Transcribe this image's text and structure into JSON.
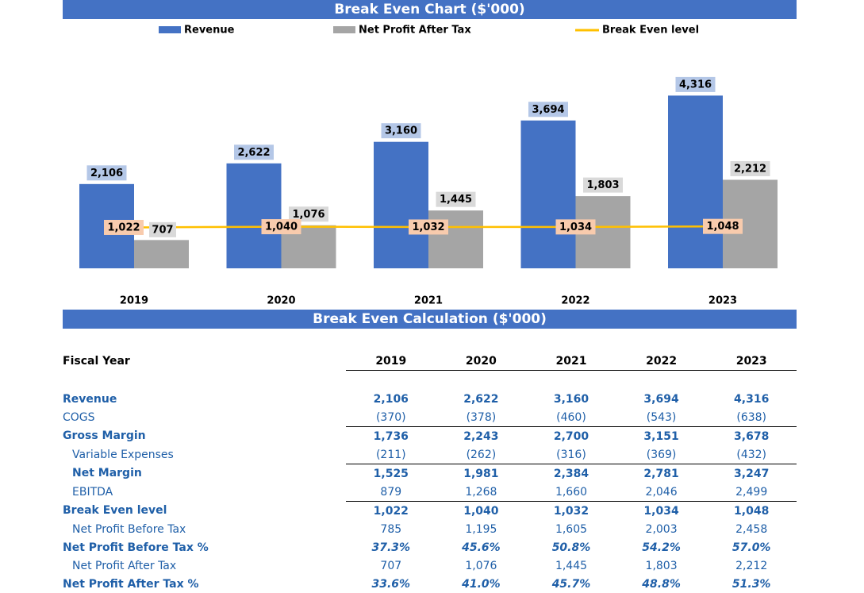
{
  "chart_title": "Break Even Chart ($'000)",
  "calc_title": "Break Even Calculation ($'000)",
  "chart_data": {
    "type": "bar",
    "title": "Break Even Chart ($'000)",
    "categories": [
      "2019",
      "2020",
      "2021",
      "2022",
      "2023"
    ],
    "series": [
      {
        "name": "Revenue",
        "kind": "bar",
        "color": "#4472C4",
        "label_bg": "#B4C7E7",
        "values": [
          2106,
          2622,
          3160,
          3694,
          4316
        ],
        "labels": [
          "2,106",
          "2,622",
          "3,160",
          "3,694",
          "4,316"
        ]
      },
      {
        "name": "Net Profit After Tax",
        "kind": "bar",
        "color": "#A5A5A5",
        "label_bg": "#D9D9D9",
        "values": [
          707,
          1076,
          1445,
          1803,
          2212
        ],
        "labels": [
          "707",
          "1,076",
          "1,445",
          "1,803",
          "2,212"
        ]
      },
      {
        "name": "Break Even level",
        "kind": "line",
        "color": "#FFC000",
        "label_bg": "#F8CBAD",
        "values": [
          1022,
          1040,
          1032,
          1034,
          1048
        ],
        "labels": [
          "1,022",
          "1,040",
          "1,032",
          "1,034",
          "1,048"
        ]
      }
    ],
    "ylim": [
      0,
      4800
    ],
    "legend_position": "top",
    "grid": false
  },
  "table": {
    "header_label": "Fiscal Year",
    "years": [
      "2019",
      "2020",
      "2021",
      "2022",
      "2023"
    ],
    "rows": [
      {
        "label": "Revenue",
        "values": [
          "2,106",
          "2,622",
          "3,160",
          "3,694",
          "4,316"
        ]
      },
      {
        "label": "COGS",
        "values": [
          "(370)",
          "(378)",
          "(460)",
          "(543)",
          "(638)"
        ]
      },
      {
        "label": "Gross Margin",
        "values": [
          "1,736",
          "2,243",
          "2,700",
          "3,151",
          "3,678"
        ]
      },
      {
        "label": "Variable Expenses",
        "values": [
          "(211)",
          "(262)",
          "(316)",
          "(369)",
          "(432)"
        ]
      },
      {
        "label": "Net Margin",
        "values": [
          "1,525",
          "1,981",
          "2,384",
          "2,781",
          "3,247"
        ]
      },
      {
        "label": "EBITDA",
        "values": [
          "879",
          "1,268",
          "1,660",
          "2,046",
          "2,499"
        ]
      },
      {
        "label": "Break Even level",
        "values": [
          "1,022",
          "1,040",
          "1,032",
          "1,034",
          "1,048"
        ]
      },
      {
        "label": "Net Profit Before Tax",
        "values": [
          "785",
          "1,195",
          "1,605",
          "2,003",
          "2,458"
        ]
      },
      {
        "label": "Net Profit Before Tax %",
        "values": [
          "37.3%",
          "45.6%",
          "50.8%",
          "54.2%",
          "57.0%"
        ]
      },
      {
        "label": "Net Profit After Tax",
        "values": [
          "707",
          "1,076",
          "1,445",
          "1,803",
          "2,212"
        ]
      },
      {
        "label": "Net Profit After Tax %",
        "values": [
          "33.6%",
          "41.0%",
          "45.7%",
          "48.8%",
          "51.3%"
        ]
      }
    ]
  }
}
